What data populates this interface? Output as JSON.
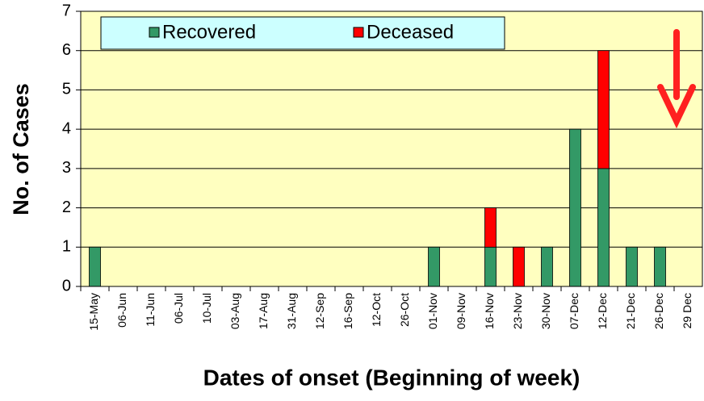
{
  "chart_data": {
    "type": "stacked_bar",
    "x_label": "Dates of onset (Beginning of week)",
    "y_label": "No. of Cases",
    "categories": [
      "15-May",
      "06-Jun",
      "11-Jun",
      "06-Jul",
      "10-Jul",
      "03-Aug",
      "17-Aug",
      "31-Aug",
      "12-Sep",
      "16-Sep",
      "12-Oct",
      "26-Oct",
      "01-Nov",
      "09-Nov",
      "16-Nov",
      "23-Nov",
      "30-Nov",
      "07-Dec",
      "12-Dec",
      "21-Dec",
      "26-Dec",
      "29 Dec"
    ],
    "series": [
      {
        "name": "Recovered",
        "color": "#339966",
        "values": [
          1,
          0,
          0,
          0,
          0,
          0,
          0,
          0,
          0,
          0,
          0,
          0,
          1,
          0,
          1,
          0,
          1,
          4,
          3,
          1,
          1,
          0
        ]
      },
      {
        "name": "Deceased",
        "color": "#ff0000",
        "values": [
          0,
          0,
          0,
          0,
          0,
          0,
          0,
          0,
          0,
          0,
          0,
          0,
          0,
          0,
          1,
          1,
          0,
          0,
          3,
          0,
          0,
          0
        ]
      }
    ],
    "ylim": [
      0,
      7
    ],
    "yticks": [
      0,
      1,
      2,
      3,
      4,
      5,
      6,
      7
    ],
    "grid": true
  }
}
